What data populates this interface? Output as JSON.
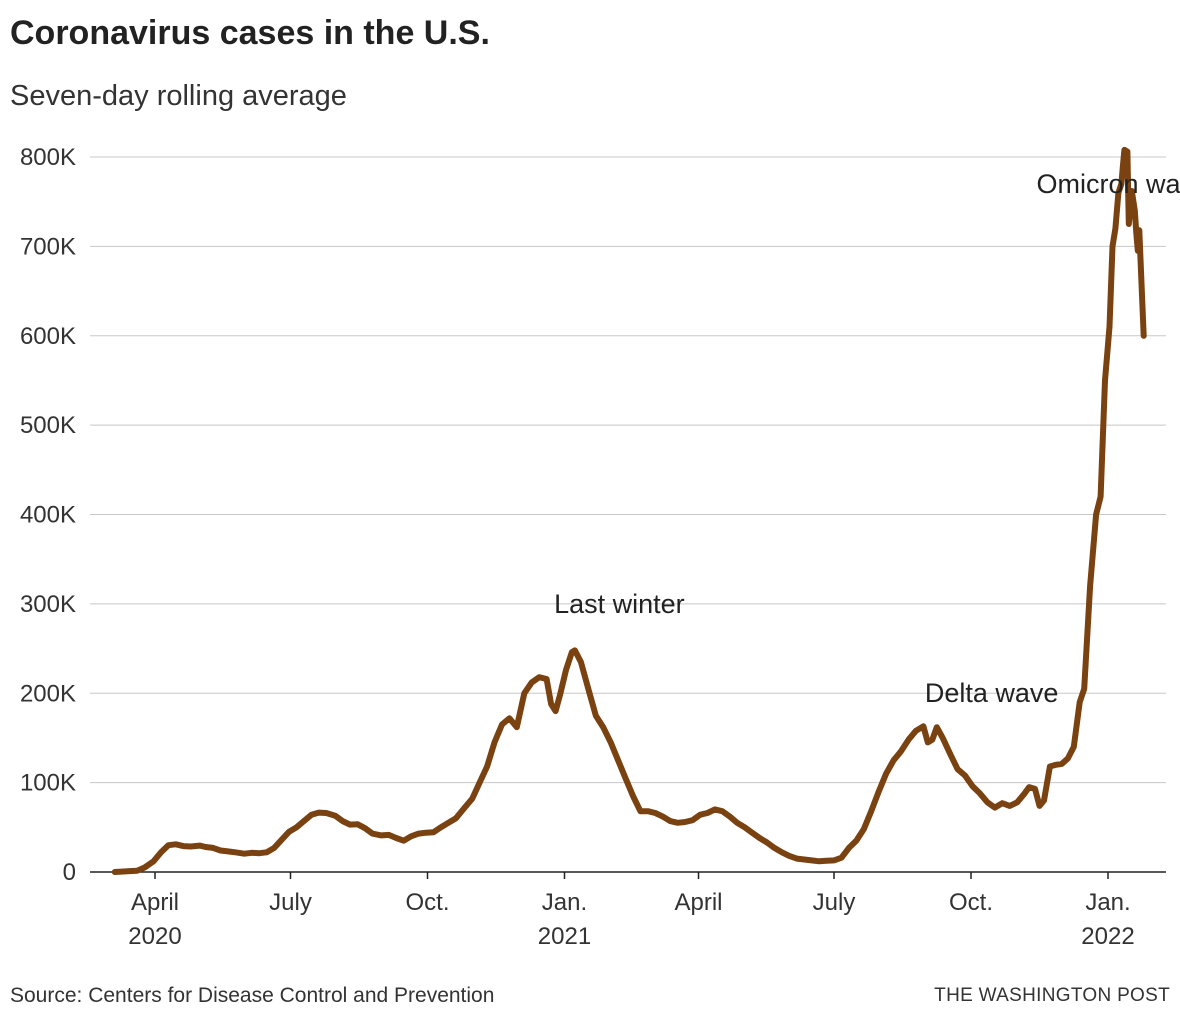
{
  "title": "Coronavirus cases in the U.S.",
  "subtitle": "Seven-day rolling average",
  "source": "Source: Centers for Disease Control and Prevention",
  "credit": "THE WASHINGTON POST",
  "colors": {
    "line": "#7a4210",
    "grid": "#c8c8c8",
    "axis": "#222222"
  },
  "chart_data": {
    "type": "line",
    "ylim": [
      0,
      800000
    ],
    "y_ticks": [
      {
        "value": 0,
        "label": "0"
      },
      {
        "value": 100000,
        "label": "100K"
      },
      {
        "value": 200000,
        "label": "200K"
      },
      {
        "value": 300000,
        "label": "300K"
      },
      {
        "value": 400000,
        "label": "400K"
      },
      {
        "value": 500000,
        "label": "500K"
      },
      {
        "value": 600000,
        "label": "600K"
      },
      {
        "value": 700000,
        "label": "700K"
      },
      {
        "value": 800000,
        "label": "800K"
      }
    ],
    "x_ticks": [
      {
        "date": "2020-04-01",
        "label": "April",
        "year": "2020"
      },
      {
        "date": "2020-07-01",
        "label": "July",
        "year": ""
      },
      {
        "date": "2020-10-01",
        "label": "Oct.",
        "year": ""
      },
      {
        "date": "2021-01-01",
        "label": "Jan.",
        "year": "2021"
      },
      {
        "date": "2021-04-01",
        "label": "April",
        "year": ""
      },
      {
        "date": "2021-07-01",
        "label": "July",
        "year": ""
      },
      {
        "date": "2021-10-01",
        "label": "Oct.",
        "year": ""
      },
      {
        "date": "2022-01-01",
        "label": "Jan.",
        "year": "2022"
      }
    ],
    "grid": true,
    "annotations": [
      {
        "label": "Last winter",
        "date": "2020-12-25",
        "value": 290000
      },
      {
        "label": "Delta wave",
        "date": "2021-08-31",
        "value": 190000
      },
      {
        "label": "Omicron wave",
        "date": "2021-11-14",
        "value": 760000
      }
    ],
    "series": [
      {
        "points": [
          [
            "2020-03-05",
            0
          ],
          [
            "2020-03-15",
            1000
          ],
          [
            "2020-03-20",
            1500
          ],
          [
            "2020-03-25",
            5000
          ],
          [
            "2020-03-31",
            12000
          ],
          [
            "2020-04-05",
            22000
          ],
          [
            "2020-04-10",
            30000
          ],
          [
            "2020-04-15",
            31000
          ],
          [
            "2020-04-20",
            29000
          ],
          [
            "2020-04-25",
            28500
          ],
          [
            "2020-05-01",
            29500
          ],
          [
            "2020-05-05",
            28000
          ],
          [
            "2020-05-10",
            27000
          ],
          [
            "2020-05-15",
            24000
          ],
          [
            "2020-05-20",
            23000
          ],
          [
            "2020-05-25",
            22000
          ],
          [
            "2020-05-31",
            20500
          ],
          [
            "2020-06-05",
            21500
          ],
          [
            "2020-06-10",
            21000
          ],
          [
            "2020-06-15",
            22000
          ],
          [
            "2020-06-20",
            27000
          ],
          [
            "2020-06-25",
            36000
          ],
          [
            "2020-06-30",
            45000
          ],
          [
            "2020-07-05",
            50000
          ],
          [
            "2020-07-10",
            57000
          ],
          [
            "2020-07-15",
            64000
          ],
          [
            "2020-07-20",
            66500
          ],
          [
            "2020-07-25",
            66000
          ],
          [
            "2020-07-31",
            63000
          ],
          [
            "2020-08-05",
            57000
          ],
          [
            "2020-08-10",
            53000
          ],
          [
            "2020-08-15",
            53500
          ],
          [
            "2020-08-20",
            49000
          ],
          [
            "2020-08-25",
            43000
          ],
          [
            "2020-08-31",
            41000
          ],
          [
            "2020-09-05",
            41500
          ],
          [
            "2020-09-10",
            38000
          ],
          [
            "2020-09-15",
            35000
          ],
          [
            "2020-09-20",
            40000
          ],
          [
            "2020-09-25",
            43000
          ],
          [
            "2020-09-30",
            44000
          ],
          [
            "2020-10-05",
            44500
          ],
          [
            "2020-10-10",
            50000
          ],
          [
            "2020-10-15",
            55000
          ],
          [
            "2020-10-20",
            60000
          ],
          [
            "2020-10-25",
            70000
          ],
          [
            "2020-10-31",
            82000
          ],
          [
            "2020-11-05",
            100000
          ],
          [
            "2020-11-10",
            118000
          ],
          [
            "2020-11-15",
            145000
          ],
          [
            "2020-11-20",
            165000
          ],
          [
            "2020-11-25",
            172000
          ],
          [
            "2020-11-30",
            162000
          ],
          [
            "2020-12-05",
            200000
          ],
          [
            "2020-12-10",
            212000
          ],
          [
            "2020-12-15",
            218000
          ],
          [
            "2020-12-20",
            216000
          ],
          [
            "2020-12-23",
            188000
          ],
          [
            "2020-12-26",
            180000
          ],
          [
            "2020-12-29",
            198000
          ],
          [
            "2021-01-02",
            226000
          ],
          [
            "2021-01-06",
            246000
          ],
          [
            "2021-01-08",
            248000
          ],
          [
            "2021-01-12",
            235000
          ],
          [
            "2021-01-17",
            205000
          ],
          [
            "2021-01-22",
            175000
          ],
          [
            "2021-01-27",
            162000
          ],
          [
            "2021-02-01",
            145000
          ],
          [
            "2021-02-06",
            125000
          ],
          [
            "2021-02-11",
            105000
          ],
          [
            "2021-02-16",
            85000
          ],
          [
            "2021-02-21",
            68000
          ],
          [
            "2021-02-26",
            68000
          ],
          [
            "2021-03-03",
            66000
          ],
          [
            "2021-03-08",
            62000
          ],
          [
            "2021-03-13",
            57000
          ],
          [
            "2021-03-18",
            55000
          ],
          [
            "2021-03-23",
            56000
          ],
          [
            "2021-03-28",
            58000
          ],
          [
            "2021-04-02",
            64000
          ],
          [
            "2021-04-07",
            66000
          ],
          [
            "2021-04-12",
            70000
          ],
          [
            "2021-04-17",
            68000
          ],
          [
            "2021-04-22",
            62000
          ],
          [
            "2021-04-27",
            55000
          ],
          [
            "2021-05-02",
            50000
          ],
          [
            "2021-05-07",
            44000
          ],
          [
            "2021-05-12",
            38000
          ],
          [
            "2021-05-17",
            33000
          ],
          [
            "2021-05-22",
            27000
          ],
          [
            "2021-05-27",
            22000
          ],
          [
            "2021-06-01",
            18000
          ],
          [
            "2021-06-06",
            15000
          ],
          [
            "2021-06-11",
            14000
          ],
          [
            "2021-06-16",
            13000
          ],
          [
            "2021-06-21",
            12000
          ],
          [
            "2021-06-26",
            12500
          ],
          [
            "2021-07-01",
            13000
          ],
          [
            "2021-07-06",
            16000
          ],
          [
            "2021-07-11",
            27000
          ],
          [
            "2021-07-16",
            35000
          ],
          [
            "2021-07-21",
            48000
          ],
          [
            "2021-07-26",
            68000
          ],
          [
            "2021-07-31",
            90000
          ],
          [
            "2021-08-05",
            110000
          ],
          [
            "2021-08-10",
            125000
          ],
          [
            "2021-08-15",
            135000
          ],
          [
            "2021-08-20",
            148000
          ],
          [
            "2021-08-25",
            158000
          ],
          [
            "2021-08-30",
            163000
          ],
          [
            "2021-09-02",
            145000
          ],
          [
            "2021-09-05",
            148000
          ],
          [
            "2021-09-08",
            162000
          ],
          [
            "2021-09-12",
            150000
          ],
          [
            "2021-09-17",
            132000
          ],
          [
            "2021-09-22",
            115000
          ],
          [
            "2021-09-27",
            108000
          ],
          [
            "2021-10-02",
            96000
          ],
          [
            "2021-10-07",
            88000
          ],
          [
            "2021-10-12",
            78000
          ],
          [
            "2021-10-17",
            72000
          ],
          [
            "2021-10-22",
            77000
          ],
          [
            "2021-10-27",
            74000
          ],
          [
            "2021-11-01",
            78000
          ],
          [
            "2021-11-06",
            88000
          ],
          [
            "2021-11-09",
            95000
          ],
          [
            "2021-11-13",
            93000
          ],
          [
            "2021-11-16",
            74000
          ],
          [
            "2021-11-19",
            80000
          ],
          [
            "2021-11-23",
            118000
          ],
          [
            "2021-11-27",
            120000
          ],
          [
            "2021-12-01",
            121000
          ],
          [
            "2021-12-05",
            127000
          ],
          [
            "2021-12-09",
            140000
          ],
          [
            "2021-12-13",
            190000
          ],
          [
            "2021-12-16",
            205000
          ],
          [
            "2021-12-20",
            320000
          ],
          [
            "2021-12-24",
            400000
          ],
          [
            "2021-12-27",
            420000
          ],
          [
            "2021-12-30",
            550000
          ],
          [
            "2022-01-02",
            610000
          ],
          [
            "2022-01-04",
            700000
          ],
          [
            "2022-01-06",
            720000
          ],
          [
            "2022-01-08",
            760000
          ],
          [
            "2022-01-10",
            770000
          ],
          [
            "2022-01-11",
            790000
          ],
          [
            "2022-01-12",
            808000
          ],
          [
            "2022-01-14",
            806000
          ],
          [
            "2022-01-15",
            725000
          ],
          [
            "2022-01-17",
            762000
          ],
          [
            "2022-01-19",
            740000
          ],
          [
            "2022-01-20",
            715000
          ],
          [
            "2022-01-21",
            695000
          ],
          [
            "2022-01-22",
            718000
          ],
          [
            "2022-01-24",
            640000
          ],
          [
            "2022-01-25",
            600000
          ]
        ]
      }
    ]
  }
}
